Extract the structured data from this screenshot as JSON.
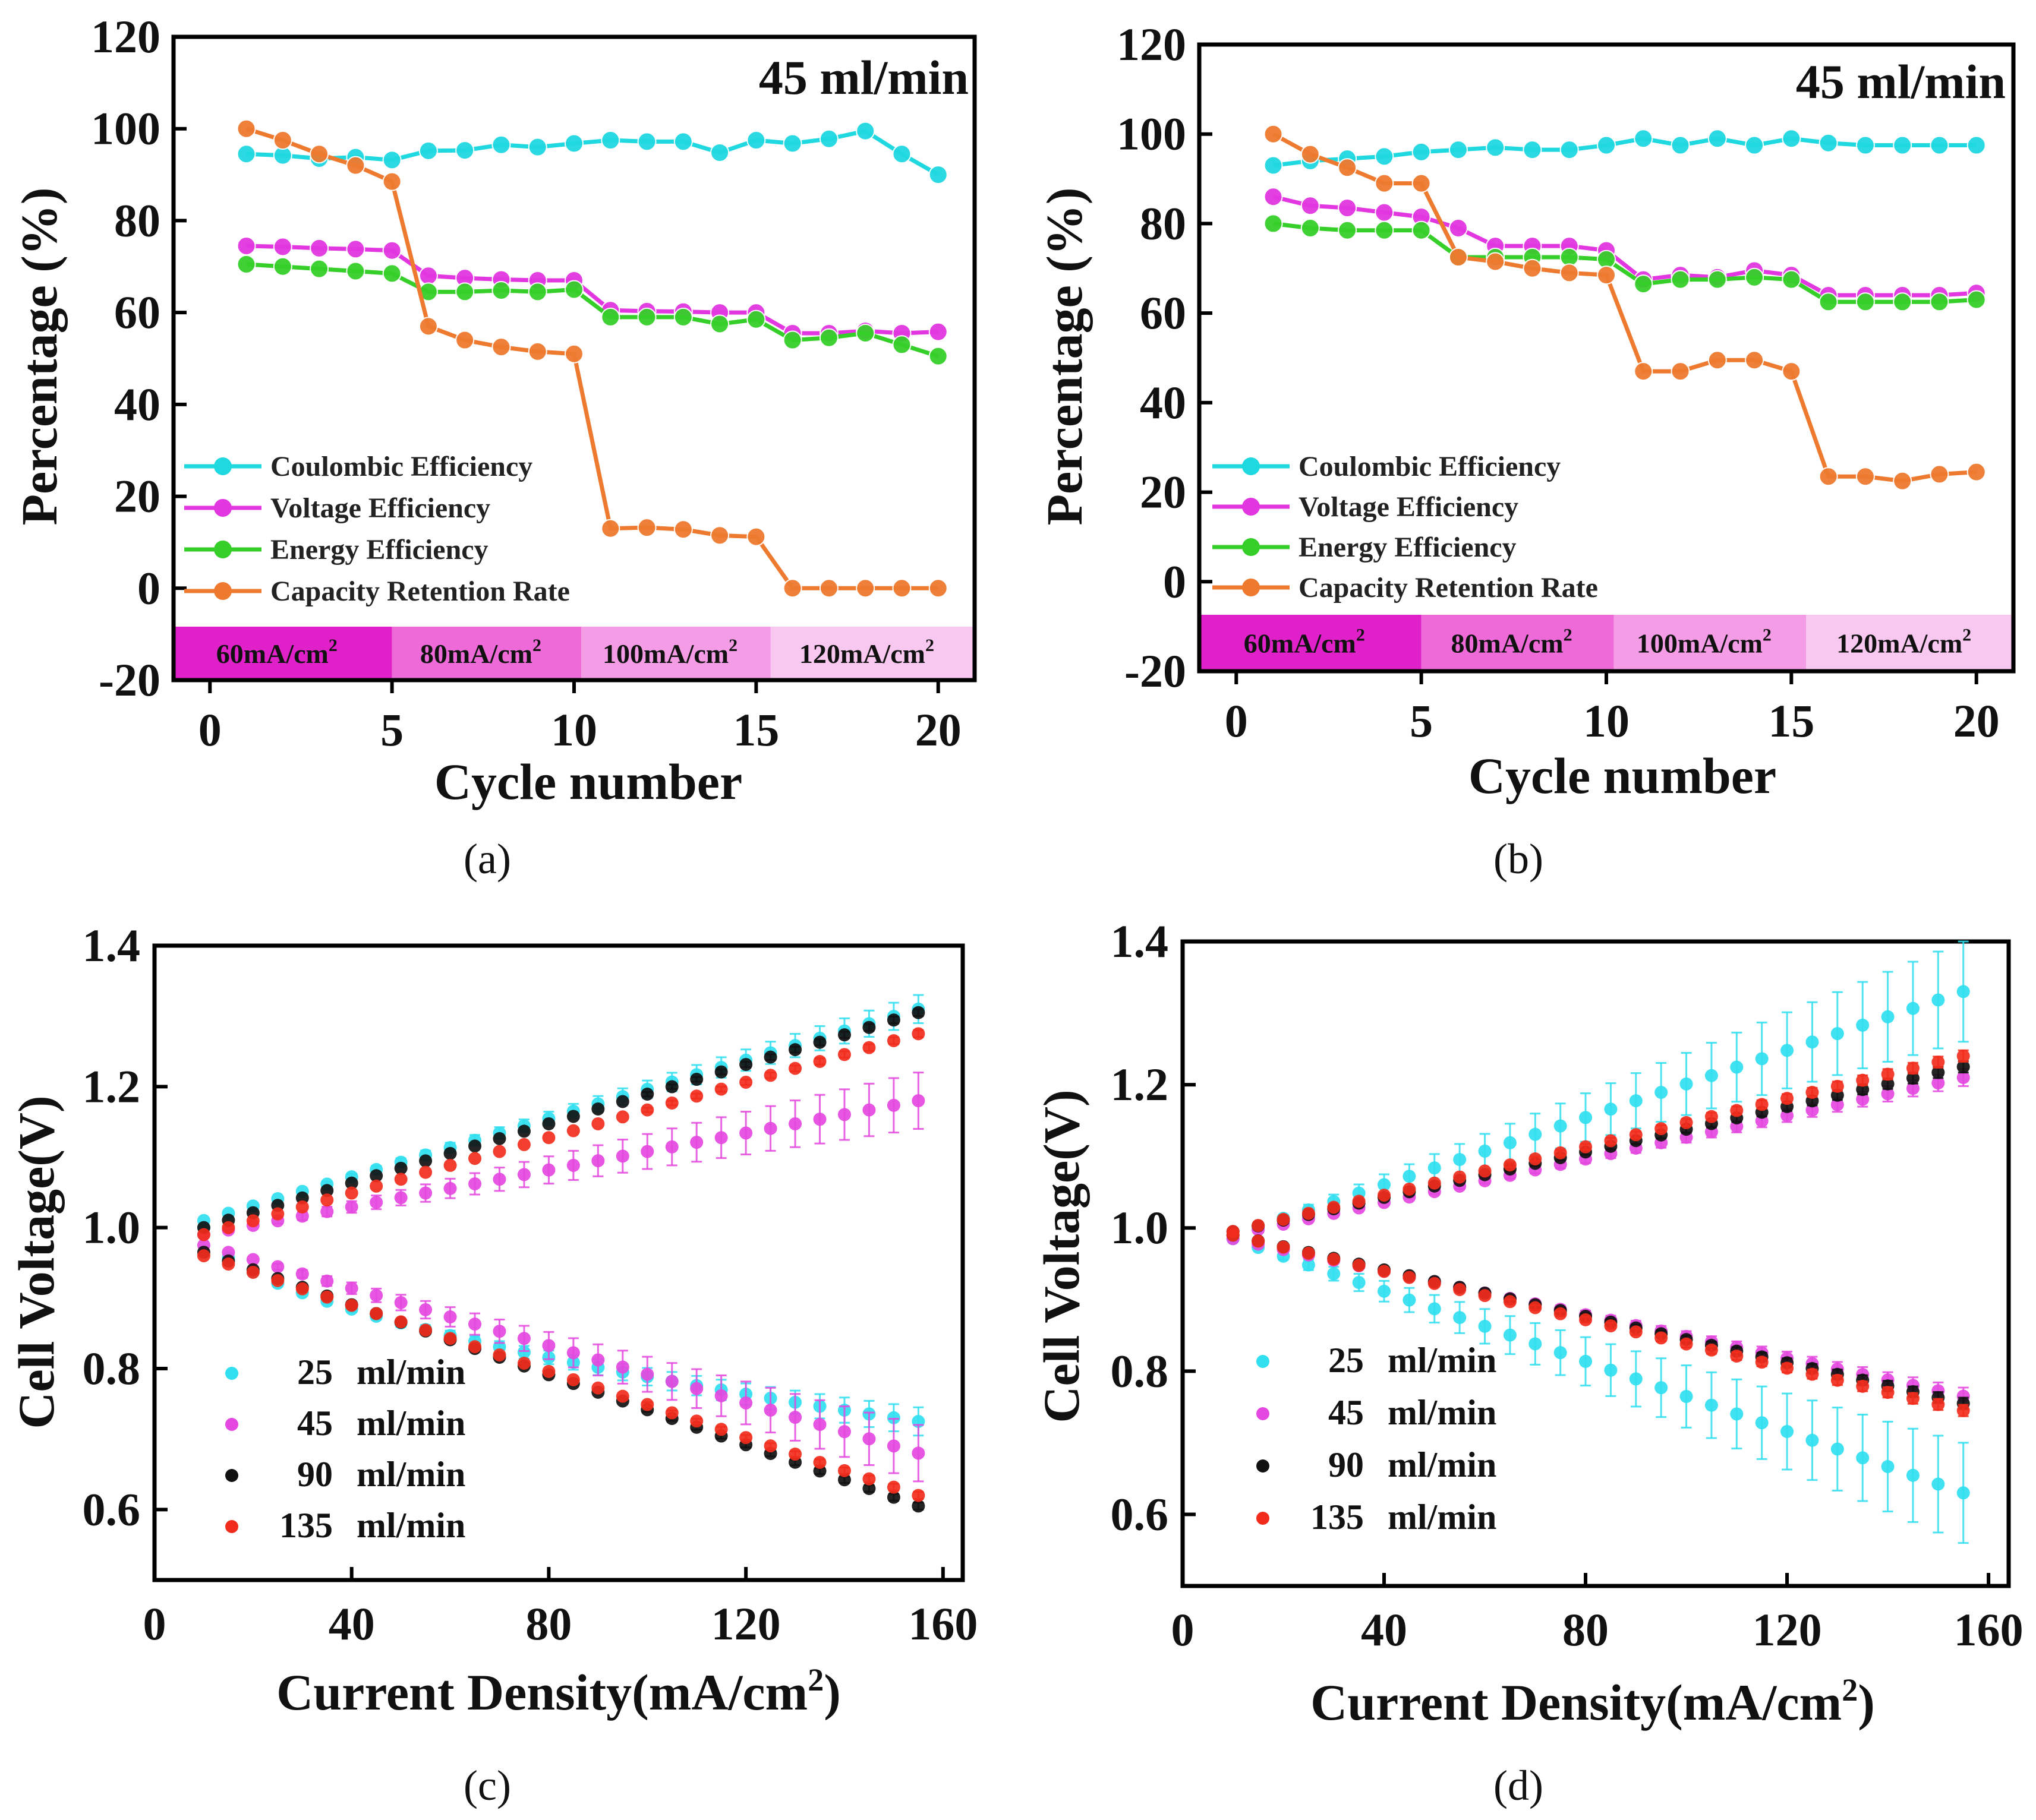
{
  "chart_data": [
    {
      "panel": "(a)",
      "type": "line",
      "annotation": "45 ml/min",
      "xlabel": "Cycle number",
      "ylabel": "Percentage (%)",
      "xlim": [
        -1,
        21
      ],
      "ylim": [
        -20,
        120
      ],
      "xticks": [
        "0",
        "5",
        "10",
        "15",
        "20"
      ],
      "yticks": [
        "-20",
        "0",
        "20",
        "40",
        "60",
        "80",
        "100",
        "120"
      ],
      "bands": [
        {
          "label": "60mA/cm²",
          "range": [
            -1,
            5
          ],
          "color": "#e020c8"
        },
        {
          "label": "80mA/cm²",
          "range": [
            5,
            10.2
          ],
          "color": "#ee6ad8"
        },
        {
          "label": "100mA/cm²",
          "range": [
            10.2,
            15.4
          ],
          "color": "#f59ce6"
        },
        {
          "label": "120mA/cm²",
          "range": [
            15.4,
            21
          ],
          "color": "#f9c8f0"
        }
      ],
      "x": [
        1,
        2,
        3,
        4,
        5,
        6,
        7,
        8,
        9,
        10,
        11,
        12,
        13,
        14,
        15,
        16,
        17,
        18,
        19,
        20
      ],
      "series": [
        {
          "name": "Coulombic Efficiency",
          "color": "#1fd8e0",
          "values": [
            94.5,
            94.2,
            93.5,
            93.8,
            93.2,
            95.2,
            95.3,
            96.5,
            96.0,
            96.8,
            97.5,
            97.2,
            97.2,
            94.8,
            97.5,
            96.8,
            97.8,
            99.5,
            94.5,
            90.0
          ]
        },
        {
          "name": "Voltage Efficiency",
          "color": "#e236e0",
          "values": [
            74.5,
            74.3,
            74.0,
            73.8,
            73.5,
            68.0,
            67.5,
            67.2,
            67.0,
            67.0,
            60.5,
            60.3,
            60.2,
            60.0,
            60.0,
            55.5,
            55.5,
            56.0,
            55.5,
            55.8
          ]
        },
        {
          "name": "Energy Efficiency",
          "color": "#36cf2a",
          "values": [
            70.5,
            70.0,
            69.5,
            69.0,
            68.5,
            64.5,
            64.5,
            64.8,
            64.5,
            65.0,
            59.0,
            59.0,
            59.0,
            57.5,
            58.5,
            54.0,
            54.5,
            55.5,
            53.0,
            50.5
          ]
        },
        {
          "name": "Capacity Retention Rate",
          "color": "#ee7a30",
          "values": [
            100.0,
            97.5,
            94.5,
            92.0,
            88.5,
            57.0,
            54.0,
            52.5,
            51.5,
            51.0,
            13.0,
            13.2,
            12.8,
            11.5,
            11.2,
            0.0,
            0.0,
            0.0,
            0.0,
            0.0
          ]
        }
      ]
    },
    {
      "panel": "(b)",
      "type": "line",
      "annotation": "45 ml/min",
      "xlabel": "Cycle number",
      "ylabel": "Percentage (%)",
      "xlim": [
        -1,
        21
      ],
      "ylim": [
        -20,
        120
      ],
      "xticks": [
        "0",
        "5",
        "10",
        "15",
        "20"
      ],
      "yticks": [
        "-20",
        "0",
        "20",
        "40",
        "60",
        "80",
        "100",
        "120"
      ],
      "bands": [
        {
          "label": "60mA/cm²",
          "range": [
            -1,
            5
          ],
          "color": "#e020c8"
        },
        {
          "label": "80mA/cm²",
          "range": [
            5,
            10.2
          ],
          "color": "#ee6ad8"
        },
        {
          "label": "100mA/cm²",
          "range": [
            10.2,
            15.4
          ],
          "color": "#f59ce6"
        },
        {
          "label": "120mA/cm²",
          "range": [
            15.4,
            21
          ],
          "color": "#f9c8f0"
        }
      ],
      "x": [
        1,
        2,
        3,
        4,
        5,
        6,
        7,
        8,
        9,
        10,
        11,
        12,
        13,
        14,
        15,
        16,
        17,
        18,
        19,
        20
      ],
      "series": [
        {
          "name": "Coulombic Efficiency",
          "color": "#1fd8e0",
          "values": [
            93.0,
            94.0,
            94.5,
            95.0,
            96.0,
            96.5,
            97.0,
            96.5,
            96.5,
            97.5,
            99.0,
            97.5,
            99.0,
            97.5,
            99.0,
            98.0,
            97.5,
            97.5,
            97.5,
            97.5
          ]
        },
        {
          "name": "Voltage Efficiency",
          "color": "#e236e0",
          "values": [
            86.0,
            84.0,
            83.5,
            82.5,
            81.5,
            79.0,
            75.0,
            75.0,
            75.0,
            74.0,
            67.5,
            68.5,
            68.0,
            69.5,
            68.5,
            64.0,
            64.0,
            64.0,
            64.0,
            64.5
          ]
        },
        {
          "name": "Energy Efficiency",
          "color": "#36cf2a",
          "values": [
            80.0,
            79.0,
            78.5,
            78.5,
            78.5,
            72.5,
            72.5,
            72.5,
            72.5,
            72.0,
            66.5,
            67.5,
            67.5,
            68.0,
            67.5,
            62.5,
            62.5,
            62.5,
            62.5,
            63.0
          ]
        },
        {
          "name": "Capacity Retention Rate",
          "color": "#ee7a30",
          "values": [
            100.0,
            95.5,
            92.5,
            89.0,
            89.0,
            72.5,
            71.5,
            70.0,
            69.0,
            68.5,
            47.0,
            47.0,
            49.5,
            49.5,
            47.0,
            23.5,
            23.5,
            22.5,
            24.0,
            24.5
          ]
        }
      ]
    },
    {
      "panel": "(c)",
      "type": "scatter",
      "xlabel": "Current Density(mA/cm",
      "xlabel_sup": "2",
      "xlabel_end": ")",
      "ylabel": "Cell Voltage(V)",
      "xlim": [
        0,
        164
      ],
      "ylim": [
        0.5,
        1.4
      ],
      "xticks": [
        "0",
        "40",
        "80",
        "120",
        "160"
      ],
      "yticks": [
        "0.6",
        "0.8",
        "1.0",
        "1.2",
        "1.4"
      ],
      "x_start": 10,
      "x_step": 5,
      "x_end": 155,
      "series": [
        {
          "name": "25",
          "unit": "ml/min",
          "color": "#30dff0",
          "charge_start": 1.01,
          "charge_end": 1.31,
          "discharge_start": 1.0,
          "discharge_end": 0.725,
          "discharge_shape": "convex",
          "error_end": 0.02
        },
        {
          "name": "45",
          "unit": "ml/min",
          "color": "#e448e0",
          "charge_start": 0.99,
          "charge_end": 1.18,
          "discharge_start": 0.975,
          "discharge_end": 0.68,
          "discharge_shape": "linear",
          "error_end": 0.04
        },
        {
          "name": "90",
          "unit": "ml/min",
          "color": "#111111",
          "charge_start": 1.0,
          "charge_end": 1.305,
          "discharge_start": 0.965,
          "discharge_end": 0.605,
          "discharge_shape": "linear",
          "error_end": 0.005
        },
        {
          "name": "135",
          "unit": "ml/min",
          "color": "#f22c1c",
          "charge_start": 0.99,
          "charge_end": 1.275,
          "discharge_start": 0.96,
          "discharge_end": 0.62,
          "discharge_shape": "linear",
          "error_end": 0.005
        }
      ]
    },
    {
      "panel": "(d)",
      "type": "scatter",
      "xlabel": "Current Density(mA/cm",
      "xlabel_sup": "2",
      "xlabel_end": ")",
      "ylabel": "Cell Voltage(V)",
      "xlim": [
        0,
        164
      ],
      "ylim": [
        0.5,
        1.4
      ],
      "xticks": [
        "0",
        "40",
        "80",
        "120",
        "160"
      ],
      "yticks": [
        "0.6",
        "0.8",
        "1.0",
        "1.2",
        "1.4"
      ],
      "x_start": 10,
      "x_step": 5,
      "x_end": 155,
      "series": [
        {
          "name": "25",
          "unit": "ml/min",
          "color": "#30dff0",
          "charge_start": 0.99,
          "charge_end": 1.33,
          "discharge_start": 0.985,
          "discharge_end": 0.63,
          "discharge_shape": "linear",
          "error_end": 0.07
        },
        {
          "name": "45",
          "unit": "ml/min",
          "color": "#e448e0",
          "charge_start": 0.99,
          "charge_end": 1.21,
          "discharge_start": 0.985,
          "discharge_end": 0.765,
          "discharge_shape": "linear",
          "error_end": 0.012
        },
        {
          "name": "90",
          "unit": "ml/min",
          "color": "#111111",
          "charge_start": 0.995,
          "charge_end": 1.225,
          "discharge_start": 0.99,
          "discharge_end": 0.755,
          "discharge_shape": "linear",
          "error_end": 0.008
        },
        {
          "name": "135",
          "unit": "ml/min",
          "color": "#f22c1c",
          "charge_start": 0.995,
          "charge_end": 1.24,
          "discharge_start": 0.99,
          "discharge_end": 0.745,
          "discharge_shape": "linear",
          "error_end": 0.008
        }
      ]
    }
  ]
}
